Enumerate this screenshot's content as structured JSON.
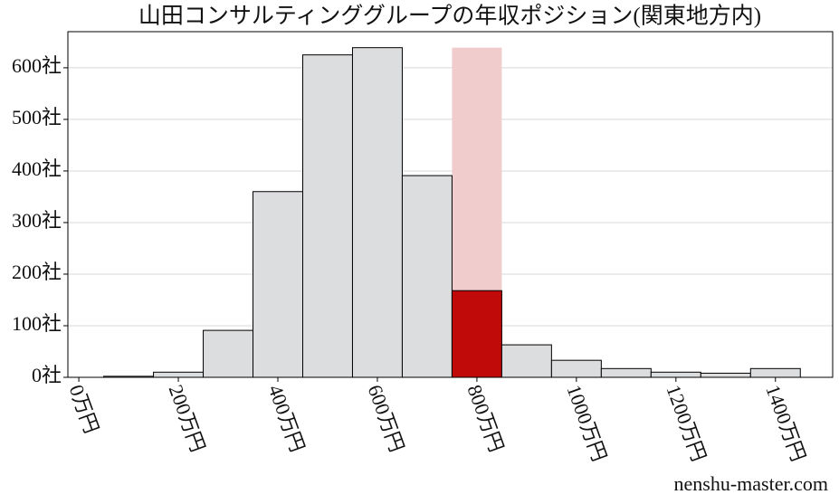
{
  "chart_data": {
    "type": "histogram",
    "title": "山田コンサルティンググループの年収ポジション(関東地方内)",
    "watermark": "nenshu-master.com",
    "bins": [
      50,
      150,
      250,
      350,
      450,
      550,
      650,
      750,
      850,
      950,
      1050,
      1150,
      1250,
      1350,
      1450
    ],
    "values": [
      2,
      10,
      91,
      360,
      625,
      639,
      391,
      168,
      63,
      33,
      17,
      10,
      8,
      17
    ],
    "color": "#dcdddf",
    "highlight_index": 7,
    "highlight_color": "#c00a0a",
    "highlight_band_color": "#f0cccc",
    "xlim": [
      -22,
      1515
    ],
    "ylim": [
      0,
      670
    ],
    "xticks": [
      {
        "value": 0,
        "label": "0万円"
      },
      {
        "value": 200,
        "label": "200万円"
      },
      {
        "value": 400,
        "label": "400万円"
      },
      {
        "value": 600,
        "label": "600万円"
      },
      {
        "value": 800,
        "label": "800万円"
      },
      {
        "value": 1000,
        "label": "1000万円"
      },
      {
        "value": 1200,
        "label": "1200万円"
      },
      {
        "value": 1400,
        "label": "1400万円"
      }
    ],
    "yticks": [
      {
        "value": 0,
        "label": "0社"
      },
      {
        "value": 100,
        "label": "100社"
      },
      {
        "value": 200,
        "label": "200社"
      },
      {
        "value": 300,
        "label": "300社"
      },
      {
        "value": 400,
        "label": "400社"
      },
      {
        "value": 500,
        "label": "500社"
      },
      {
        "value": 600,
        "label": "600社"
      }
    ],
    "grid": true
  }
}
